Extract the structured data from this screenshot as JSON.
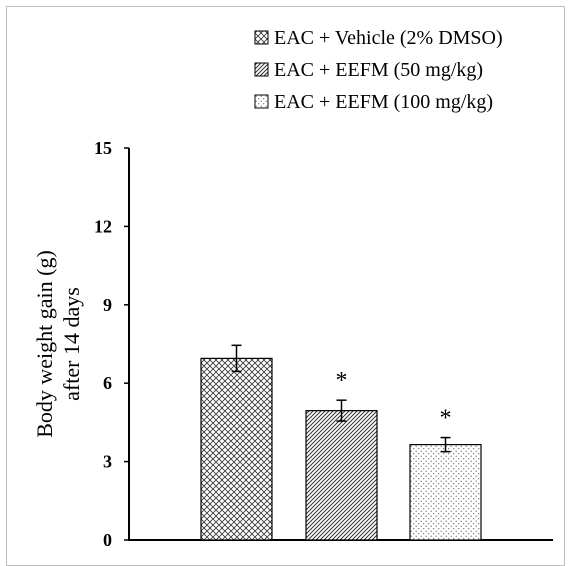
{
  "chart_data": {
    "type": "bar",
    "categories": [
      "EAC + Vehicle (2% DMSO)",
      "EAC + EEFM (50 mg/kg)",
      "EAC + EEFM (100 mg/kg)"
    ],
    "values": [
      6.95,
      4.95,
      3.65
    ],
    "errors": [
      0.5,
      0.4,
      0.27
    ],
    "significance": [
      "",
      "*",
      "*"
    ],
    "patterns": [
      "crosshatch",
      "diagonal-hatch",
      "dots"
    ],
    "ylabel_line1": "Body weight gain (g)",
    "ylabel_line2": "after 14 days",
    "ylim": [
      0,
      15
    ],
    "yticks": [
      "0",
      "3",
      "6",
      "9",
      "12",
      "15"
    ],
    "legend_position": "top-right",
    "grid": false
  }
}
